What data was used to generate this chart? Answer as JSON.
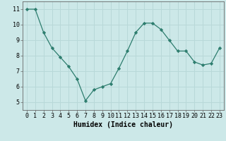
{
  "x": [
    0,
    1,
    2,
    3,
    4,
    5,
    6,
    7,
    8,
    9,
    10,
    11,
    12,
    13,
    14,
    15,
    16,
    17,
    18,
    19,
    20,
    21,
    22,
    23
  ],
  "y": [
    11.0,
    11.0,
    9.5,
    8.5,
    7.9,
    7.3,
    6.5,
    5.1,
    5.8,
    6.0,
    6.2,
    7.2,
    8.3,
    9.5,
    10.1,
    10.1,
    9.7,
    9.0,
    8.3,
    8.3,
    7.6,
    7.4,
    7.5,
    8.5
  ],
  "line_color": "#2d7d6e",
  "marker": "D",
  "marker_size": 2.2,
  "bg_color": "#cce8e8",
  "grid_color": "#b8d8d8",
  "xlabel": "Humidex (Indice chaleur)",
  "xlim": [
    -0.5,
    23.5
  ],
  "ylim": [
    4.5,
    11.5
  ],
  "yticks": [
    5,
    6,
    7,
    8,
    9,
    10,
    11
  ],
  "xtick_labels": [
    "0",
    "1",
    "2",
    "3",
    "4",
    "5",
    "6",
    "7",
    "8",
    "9",
    "10",
    "11",
    "12",
    "13",
    "14",
    "15",
    "16",
    "17",
    "18",
    "19",
    "20",
    "21",
    "22",
    "23"
  ],
  "label_fontsize": 7,
  "tick_fontsize": 6
}
